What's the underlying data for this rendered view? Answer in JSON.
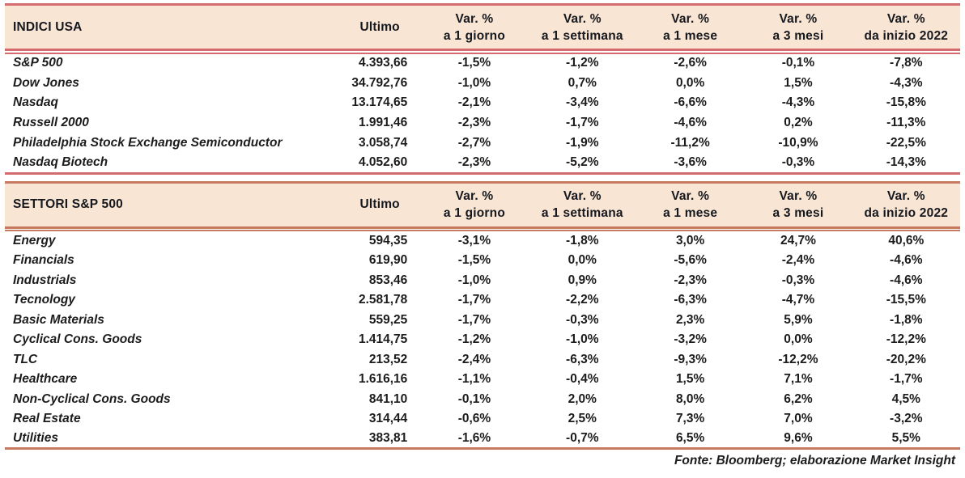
{
  "colors": {
    "header_bg": "#f9e5d3",
    "line_table1": "#d36b6f",
    "line_table2": "#c87a61",
    "header_text": "#15181e",
    "body_text": "#1c1c1c"
  },
  "tables": [
    {
      "section_label": "INDICI USA",
      "ultimo_label": "Ultimo",
      "var_columns": [
        {
          "line1": "Var. %",
          "line2": "a 1 giorno"
        },
        {
          "line1": "Var. %",
          "line2": "a 1 settimana"
        },
        {
          "line1": "Var. %",
          "line2": "a 1 mese"
        },
        {
          "line1": "Var. %",
          "line2": "a 3 mesi"
        },
        {
          "line1": "Var. %",
          "line2": "da inizio 2022"
        }
      ],
      "rows": [
        {
          "name": "S&P 500",
          "ultimo": "4.393,66",
          "vars": [
            "-1,5%",
            "-1,2%",
            "-2,6%",
            "-0,1%",
            "-7,8%"
          ]
        },
        {
          "name": "Dow Jones",
          "ultimo": "34.792,76",
          "vars": [
            "-1,0%",
            "0,7%",
            "0,0%",
            "1,5%",
            "-4,3%"
          ]
        },
        {
          "name": "Nasdaq",
          "ultimo": "13.174,65",
          "vars": [
            "-2,1%",
            "-3,4%",
            "-6,6%",
            "-4,3%",
            "-15,8%"
          ]
        },
        {
          "name": "Russell 2000",
          "ultimo": "1.991,46",
          "vars": [
            "-2,3%",
            "-1,7%",
            "-4,6%",
            "0,2%",
            "-11,3%"
          ]
        },
        {
          "name": "Philadelphia Stock Exchange Semiconductor",
          "ultimo": "3.058,74",
          "vars": [
            "-2,7%",
            "-1,9%",
            "-11,2%",
            "-10,9%",
            "-22,5%"
          ]
        },
        {
          "name": "Nasdaq Biotech",
          "ultimo": "4.052,60",
          "vars": [
            "-2,3%",
            "-5,2%",
            "-3,6%",
            "-0,3%",
            "-14,3%"
          ]
        }
      ]
    },
    {
      "section_label": "SETTORI S&P 500",
      "ultimo_label": "Ultimo",
      "var_columns": [
        {
          "line1": "Var. %",
          "line2": "a 1 giorno"
        },
        {
          "line1": "Var. %",
          "line2": "a 1 settimana"
        },
        {
          "line1": "Var. %",
          "line2": "a 1 mese"
        },
        {
          "line1": "Var. %",
          "line2": "a 3 mesi"
        },
        {
          "line1": "Var. %",
          "line2": "da inizio 2022"
        }
      ],
      "rows": [
        {
          "name": "Energy",
          "ultimo": "594,35",
          "vars": [
            "-3,1%",
            "-1,8%",
            "3,0%",
            "24,7%",
            "40,6%"
          ]
        },
        {
          "name": "Financials",
          "ultimo": "619,90",
          "vars": [
            "-1,5%",
            "0,0%",
            "-5,6%",
            "-2,4%",
            "-4,6%"
          ]
        },
        {
          "name": "Industrials",
          "ultimo": "853,46",
          "vars": [
            "-1,0%",
            "0,9%",
            "-2,3%",
            "-0,3%",
            "-4,6%"
          ]
        },
        {
          "name": "Tecnology",
          "ultimo": "2.581,78",
          "vars": [
            "-1,7%",
            "-2,2%",
            "-6,3%",
            "-4,7%",
            "-15,5%"
          ]
        },
        {
          "name": "Basic Materials",
          "ultimo": "559,25",
          "vars": [
            "-1,7%",
            "-0,3%",
            "2,3%",
            "5,9%",
            "-1,8%"
          ]
        },
        {
          "name": "Cyclical Cons. Goods",
          "ultimo": "1.414,75",
          "vars": [
            "-1,2%",
            "-1,0%",
            "-3,2%",
            "0,0%",
            "-12,2%"
          ]
        },
        {
          "name": "TLC",
          "ultimo": "213,52",
          "vars": [
            "-2,4%",
            "-6,3%",
            "-9,3%",
            "-12,2%",
            "-20,2%"
          ]
        },
        {
          "name": "Healthcare",
          "ultimo": "1.616,16",
          "vars": [
            "-1,1%",
            "-0,4%",
            "1,5%",
            "7,1%",
            "-1,7%"
          ]
        },
        {
          "name": "Non-Cyclical Cons. Goods",
          "ultimo": "841,10",
          "vars": [
            "-0,1%",
            "2,0%",
            "8,0%",
            "6,2%",
            "4,5%"
          ]
        },
        {
          "name": "Real Estate",
          "ultimo": "314,44",
          "vars": [
            "-0,6%",
            "2,5%",
            "7,3%",
            "7,0%",
            "-3,2%"
          ]
        },
        {
          "name": "Utilities",
          "ultimo": "383,81",
          "vars": [
            "-1,6%",
            "-0,7%",
            "6,5%",
            "9,6%",
            "5,5%"
          ]
        }
      ]
    }
  ],
  "footer": {
    "source_note": "Fonte: Bloomberg; elaborazione Market Insight"
  }
}
